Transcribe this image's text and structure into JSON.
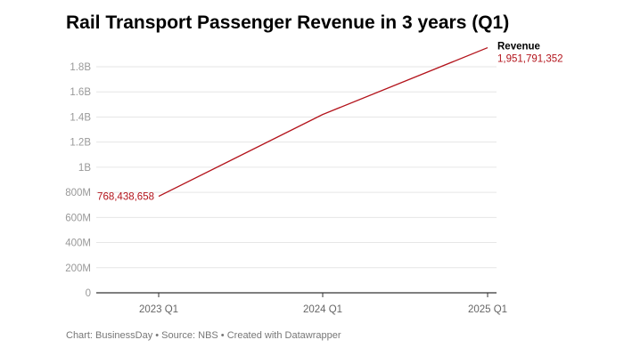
{
  "title": "Rail Transport Passenger Revenue in 3 years (Q1)",
  "footer": "Chart: BusinessDay • Source: NBS • Created with Datawrapper",
  "chart_data": {
    "type": "line",
    "title": "Rail Transport Passenger Revenue in 3 years (Q1)",
    "categories": [
      "2023 Q1",
      "2024 Q1",
      "2025 Q1"
    ],
    "series": [
      {
        "name": "Revenue",
        "values": [
          768438658,
          1420000000,
          1951791352
        ],
        "color": "#b3131b"
      }
    ],
    "data_labels": [
      "768,438,658",
      "1,951,791,352"
    ],
    "yticks": [
      0,
      200000000,
      400000000,
      600000000,
      800000000,
      1000000000,
      1200000000,
      1400000000,
      1600000000,
      1800000000
    ],
    "ytick_labels": [
      "0",
      "200M",
      "400M",
      "600M",
      "800M",
      "1B",
      "1.2B",
      "1.4B",
      "1.6B",
      "1.8B"
    ],
    "ylim": [
      0,
      1800000000
    ],
    "grid": true,
    "legend": "end-of-line label"
  }
}
